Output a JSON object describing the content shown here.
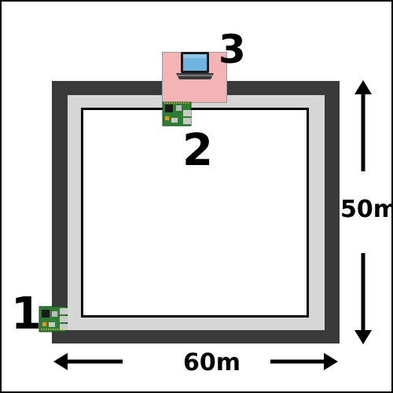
{
  "labels": {
    "node_1": "1",
    "node_2": "2",
    "node_3": "3"
  },
  "dimensions": {
    "width": "60m",
    "height": "50m"
  },
  "icons": {
    "node_1": "raspberry-pi-board-icon",
    "node_2": "raspberry-pi-board-icon",
    "node_3": "laptop-icon"
  },
  "colors": {
    "outer_wall": "#3a3a3a",
    "inner_wall": "#d6d6d6",
    "laptop_area": "#f4b3b4",
    "board": "#2e7d32"
  }
}
